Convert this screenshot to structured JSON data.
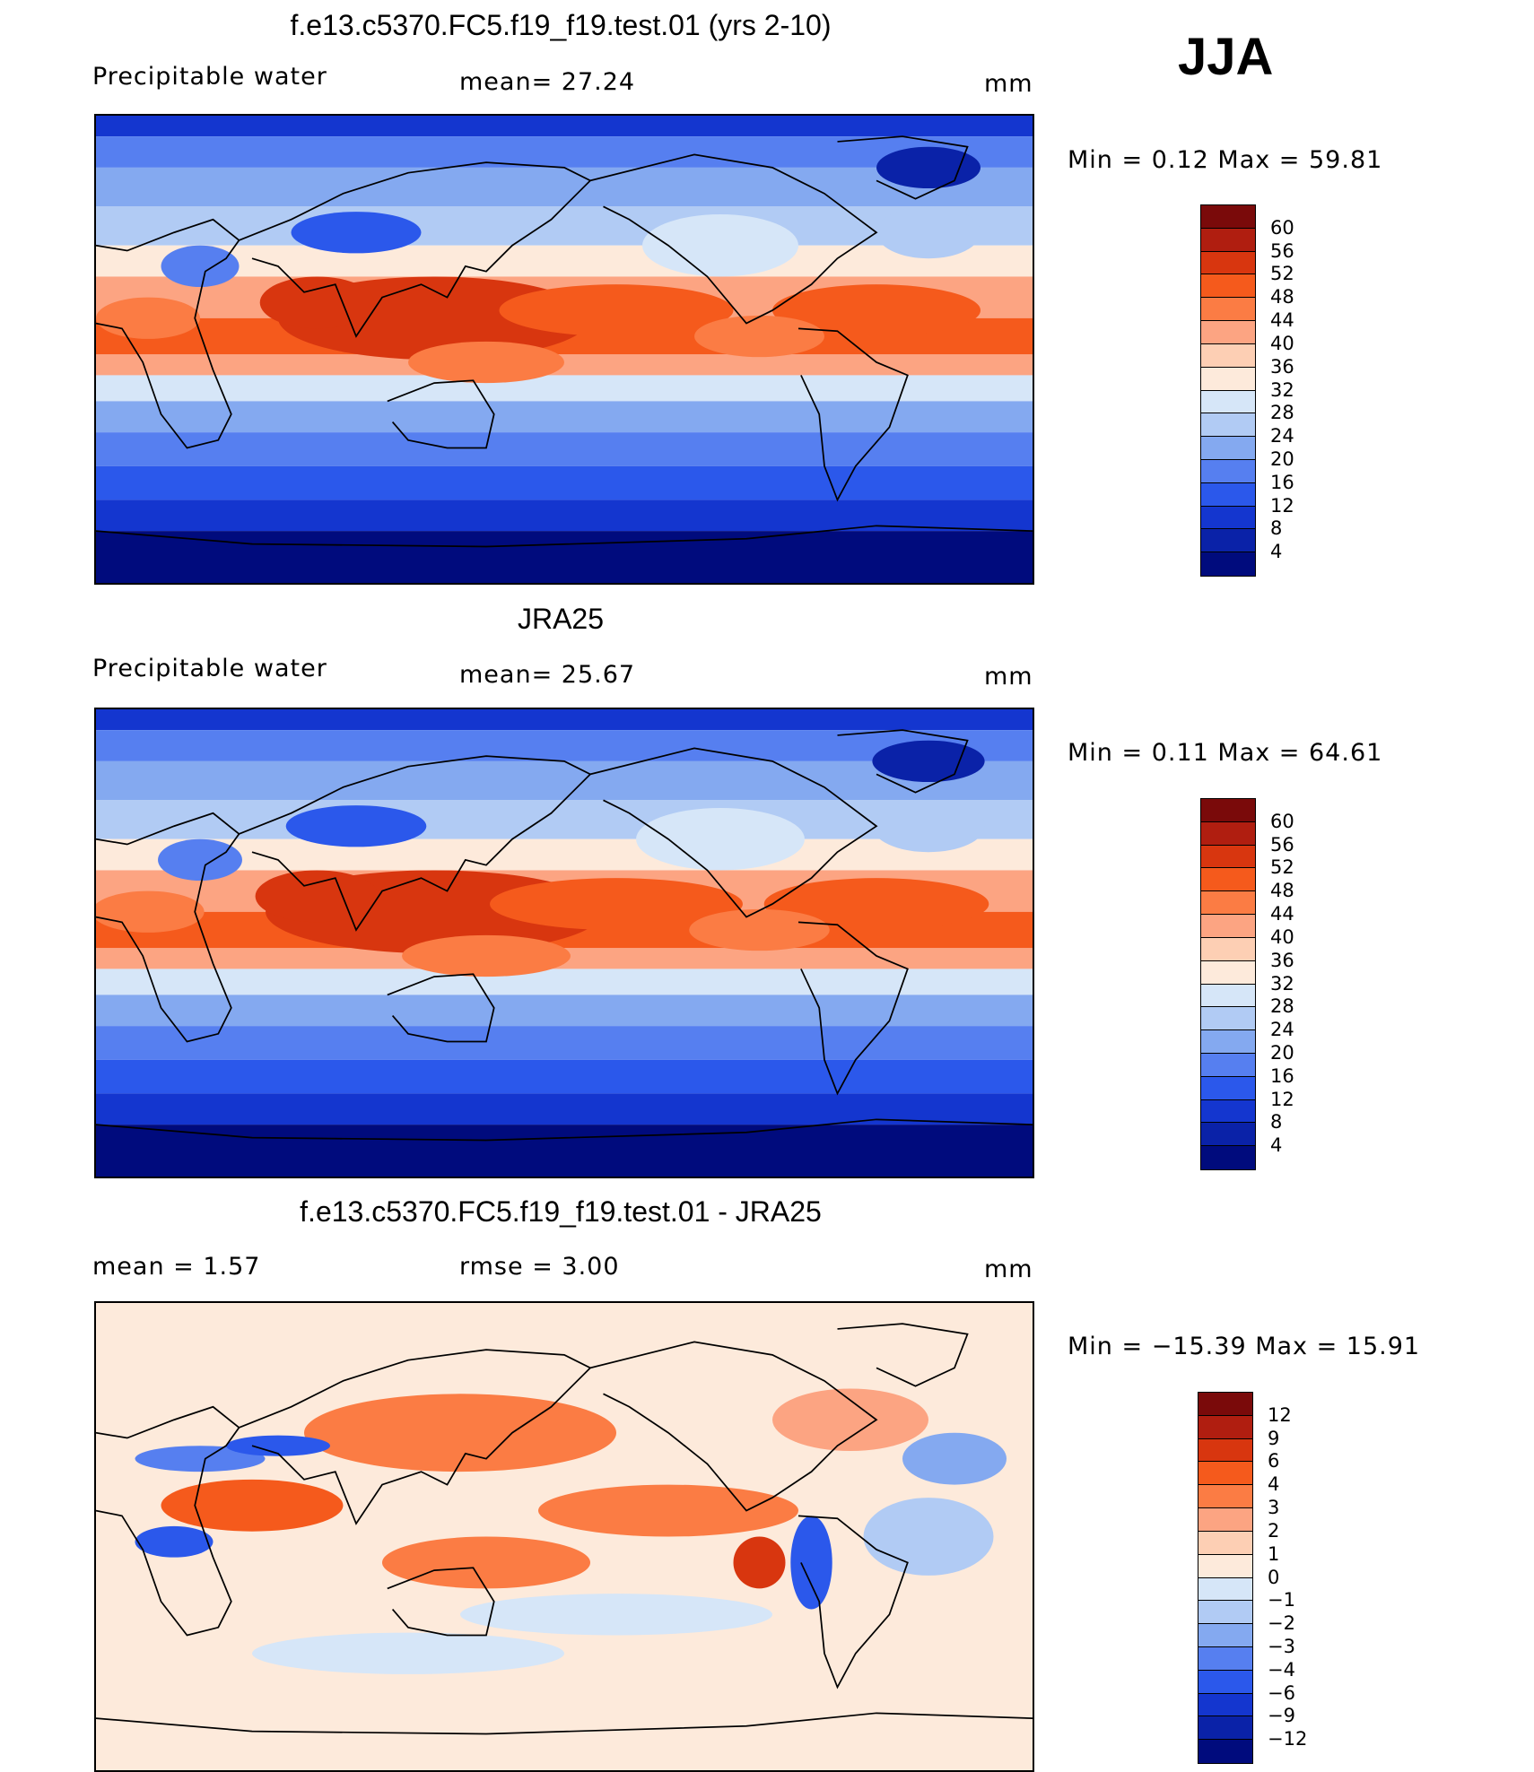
{
  "season": "JJA",
  "panels": [
    {
      "title": "f.e13.c5370.FC5.f19_f19.test.01 (yrs 2-10)",
      "left_label": "Precipitable  water",
      "center_label": "mean=   27.24",
      "units": "mm",
      "minmax": "Min  =     0.12  Max  =    59.81",
      "colorbar_labels": [
        "60",
        "56",
        "52",
        "48",
        "44",
        "40",
        "36",
        "32",
        "28",
        "24",
        "20",
        "16",
        "12",
        "8",
        "4"
      ]
    },
    {
      "title": "JRA25",
      "left_label": "Precipitable  water",
      "center_label": "mean=   25.67",
      "units": "mm",
      "minmax": "Min  =     0.11  Max  =    64.61",
      "colorbar_labels": [
        "60",
        "56",
        "52",
        "48",
        "44",
        "40",
        "36",
        "32",
        "28",
        "24",
        "20",
        "16",
        "12",
        "8",
        "4"
      ]
    },
    {
      "title": "f.e13.c5370.FC5.f19_f19.test.01 - JRA25",
      "left_label": "mean  =      1.57",
      "center_label": "rmse  =      3.00",
      "units": "mm",
      "minmax": "Min  = −15.39  Max  =    15.91",
      "colorbar_labels": [
        "12",
        "9",
        "6",
        "4",
        "3",
        "2",
        "1",
        "0",
        "−1",
        "−2",
        "−3",
        "−4",
        "−6",
        "−9",
        "−12"
      ]
    }
  ],
  "colors": {
    "abs_scale": [
      "#7a0a0a",
      "#b01e10",
      "#d8360f",
      "#f55a1c",
      "#fb7c44",
      "#fca482",
      "#fdcfb4",
      "#fdeadb",
      "#d6e6f8",
      "#b1cbf4",
      "#84a9f0",
      "#567ff0",
      "#2b58eb",
      "#1436cf",
      "#0a22a8",
      "#000b7d"
    ],
    "diff_scale": [
      "#7a0a0a",
      "#b01e10",
      "#d8360f",
      "#f55a1c",
      "#fb7c44",
      "#fca482",
      "#fdcfb4",
      "#fdeadb",
      "#d6e6f8",
      "#b1cbf4",
      "#84a9f0",
      "#567ff0",
      "#2b58eb",
      "#1436cf",
      "#0a22a8",
      "#000b7d"
    ]
  }
}
